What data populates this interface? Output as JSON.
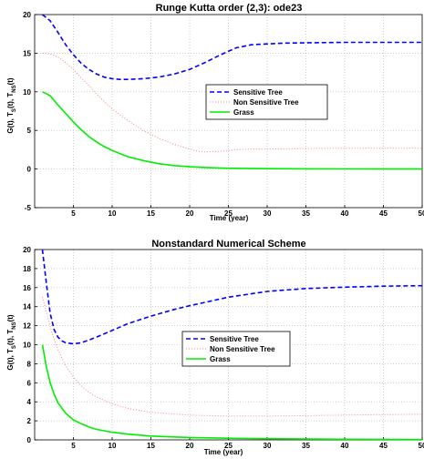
{
  "chart_data": [
    {
      "type": "line",
      "title": "Runge Kutta order (2,3): ode23",
      "xlabel": "Time (year)",
      "ylabel": "G(t), T_S(t), T_NS(t)",
      "ylabel_main": "G(t), T",
      "ylabel_sub1": "S",
      "ylabel_mid": "(t), T",
      "ylabel_sub2": "NS",
      "ylabel_tail": "(t)",
      "xlim": [
        0,
        50
      ],
      "ylim": [
        -5,
        20
      ],
      "xticks": [
        5,
        10,
        15,
        20,
        25,
        30,
        35,
        40,
        45,
        50
      ],
      "yticks": [
        -5,
        0,
        5,
        10,
        15,
        20
      ],
      "grid": true,
      "legend_position": "center-right",
      "series": [
        {
          "name": "Sensitive Tree",
          "color": "#0000ff",
          "dash": "dashed",
          "x": [
            1,
            2,
            3,
            4,
            5,
            6,
            7,
            8,
            9,
            10,
            11,
            12,
            14,
            16,
            18,
            20,
            22,
            24,
            26,
            28,
            30,
            32,
            35,
            40,
            45,
            50
          ],
          "y": [
            20,
            19.2,
            17.7,
            16.1,
            14.8,
            13.7,
            12.9,
            12.3,
            11.9,
            11.7,
            11.6,
            11.6,
            11.7,
            11.9,
            12.3,
            12.9,
            13.8,
            14.8,
            15.7,
            16.1,
            16.2,
            16.3,
            16.35,
            16.4,
            16.4,
            16.4
          ]
        },
        {
          "name": "Non Sensitive Tree",
          "color": "#ff8080",
          "dash": "dotted",
          "x": [
            1,
            2,
            3,
            4,
            5,
            6,
            7,
            8,
            9,
            10,
            11,
            12,
            14,
            16,
            18,
            20,
            21,
            22,
            24,
            26,
            28,
            30,
            35,
            40,
            45,
            50
          ],
          "y": [
            15,
            14.9,
            14.5,
            13.8,
            12.9,
            11.8,
            10.8,
            9.7,
            8.7,
            7.8,
            7.0,
            6.3,
            5.0,
            4.0,
            3.2,
            2.6,
            2.3,
            2.2,
            2.3,
            2.5,
            2.6,
            2.6,
            2.65,
            2.7,
            2.7,
            2.7
          ]
        },
        {
          "name": "Grass",
          "color": "#00ee00",
          "dash": "solid",
          "x": [
            1,
            2,
            3,
            4,
            5,
            6,
            7,
            8,
            9,
            10,
            11,
            12,
            14,
            16,
            18,
            20,
            22,
            25,
            30,
            35,
            40,
            45,
            50
          ],
          "y": [
            10,
            9.5,
            8.3,
            7.2,
            6.1,
            5.1,
            4.2,
            3.5,
            2.9,
            2.4,
            2.0,
            1.6,
            1.1,
            0.7,
            0.45,
            0.3,
            0.2,
            0.1,
            0.05,
            0.02,
            0.01,
            0.0,
            0.0
          ]
        }
      ]
    },
    {
      "type": "line",
      "title": "Nonstandard Numerical Scheme",
      "xlabel": "Time (year)",
      "ylabel": "G(t), T_S(t), T_NS(t)",
      "ylabel_main": "G(t), T",
      "ylabel_sub1": "S",
      "ylabel_mid": "(t), T",
      "ylabel_sub2": "NS",
      "ylabel_tail": "(t)",
      "xlim": [
        0,
        50
      ],
      "ylim": [
        0,
        20
      ],
      "xticks": [
        5,
        10,
        15,
        20,
        25,
        30,
        35,
        40,
        45,
        50
      ],
      "yticks": [
        0,
        2,
        4,
        6,
        8,
        10,
        12,
        14,
        16,
        18,
        20
      ],
      "grid": true,
      "legend_position": "center",
      "series": [
        {
          "name": "Sensitive Tree",
          "color": "#0000ff",
          "dash": "dashed",
          "x": [
            1,
            1.5,
            2,
            2.5,
            3,
            3.5,
            4,
            5,
            6,
            7,
            8,
            10,
            12,
            15,
            18,
            20,
            25,
            30,
            35,
            40,
            45,
            50
          ],
          "y": [
            20,
            16.5,
            13.3,
            11.6,
            10.8,
            10.4,
            10.2,
            10.1,
            10.2,
            10.5,
            10.8,
            11.5,
            12.2,
            13.0,
            13.7,
            14.1,
            15.0,
            15.6,
            15.9,
            16.05,
            16.15,
            16.2
          ]
        },
        {
          "name": "Non Sensitive Tree",
          "color": "#ff8080",
          "dash": "dotted",
          "x": [
            1,
            1.5,
            2,
            2.5,
            3,
            4,
            5,
            6,
            7,
            8,
            10,
            12,
            15,
            20,
            25,
            30,
            35,
            40,
            45,
            50
          ],
          "y": [
            15,
            13.5,
            11.9,
            10.6,
            9.5,
            7.8,
            6.6,
            5.7,
            5.0,
            4.5,
            3.8,
            3.3,
            2.9,
            2.6,
            2.5,
            2.5,
            2.55,
            2.6,
            2.65,
            2.7
          ]
        },
        {
          "name": "Grass",
          "color": "#00ee00",
          "dash": "solid",
          "x": [
            1,
            1.5,
            2,
            2.5,
            3,
            4,
            5,
            6,
            7,
            8,
            10,
            12,
            15,
            20,
            25,
            30,
            40,
            50
          ],
          "y": [
            10,
            7.7,
            6.0,
            4.8,
            3.9,
            2.8,
            2.1,
            1.7,
            1.35,
            1.1,
            0.8,
            0.6,
            0.4,
            0.25,
            0.17,
            0.12,
            0.07,
            0.05
          ]
        }
      ]
    }
  ]
}
